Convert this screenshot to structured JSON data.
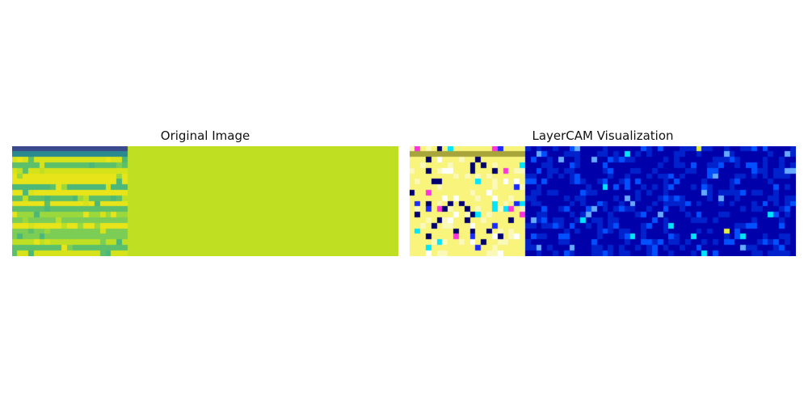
{
  "figure": {
    "panels": [
      {
        "title": "Original Image",
        "image": {
          "grid_cols": 70,
          "grid_rows": 20,
          "region_split_fraction": 0.303,
          "colors": {
            "flat_fill": "#bfe022",
            "stripe_dark_top": "#3a4a8c",
            "stripe_teal": "#2a8a8e",
            "row_palette": [
              "#5cbf6a",
              "#7ccd56",
              "#9ad83c",
              "#bfe022",
              "#d7e31a",
              "#e7e419",
              "#4bb87a"
            ]
          }
        }
      },
      {
        "title": "LayerCAM Visualization",
        "image": {
          "grid_cols": 70,
          "grid_rows": 20,
          "region_split_fraction": 0.303,
          "colors": {
            "hot_base": "#f8f47c",
            "hot_pale": "#fbf9b8",
            "hot_white": "#ffffff",
            "hot_olive": "#a8a63a",
            "cold_base": "#0000aa",
            "cold_mid": "#0022cc",
            "cold_bright": "#0050ff",
            "accent_cyan": "#00e5ff",
            "accent_magenta": "#ff33dd",
            "accent_navy": "#000070",
            "accent_blue": "#1a2aff",
            "accent_light": "#66aaff",
            "accent_yellow": "#e6ee40"
          }
        }
      }
    ]
  }
}
